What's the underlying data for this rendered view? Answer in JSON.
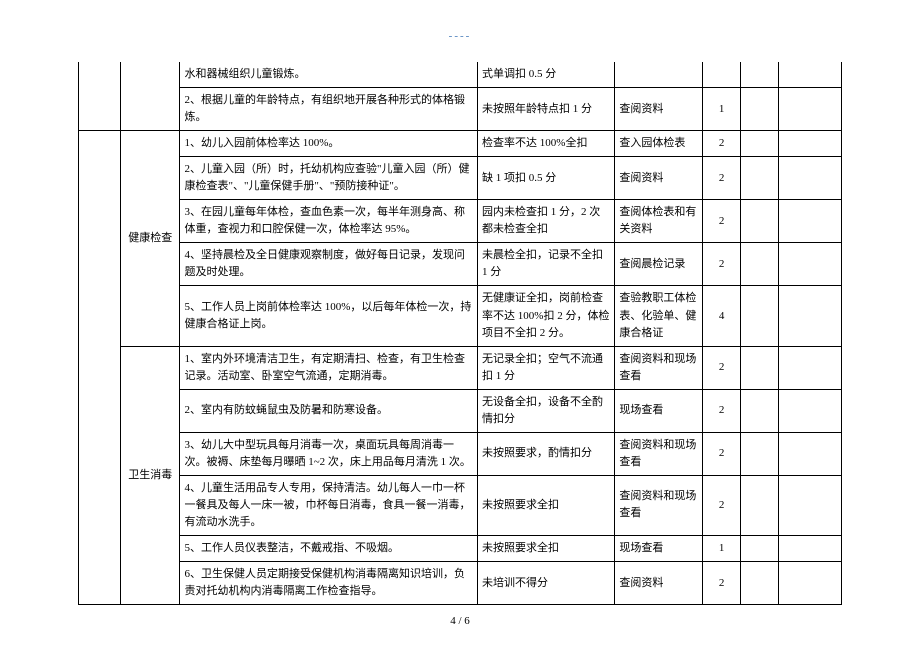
{
  "topMark": "----",
  "footer": "4 / 6",
  "categories": {
    "health": "健康检查",
    "sanit": "卫生消毒"
  },
  "rows": [
    {
      "c2": "水和器械组织儿童锻炼。",
      "c3": "式单调扣 0.5 分",
      "c4": "",
      "c5": "",
      "c6": "",
      "c7": ""
    },
    {
      "c2": "2、根据儿童的年龄特点，有组织地开展各种形式的体格锻炼。",
      "c3": "未按照年龄特点扣 1 分",
      "c4": "查阅资料",
      "c5": "1",
      "c6": "",
      "c7": ""
    },
    {
      "c2": "1、幼儿入园前体检率达 100%。",
      "c3": "检查率不达 100%全扣",
      "c4": "查入园体检表",
      "c5": "2",
      "c6": "",
      "c7": ""
    },
    {
      "c2": "2、儿童入园（所）时，托幼机构应查验\"儿童入园（所）健康检查表\"、\"儿童保健手册\"、\"预防接种证\"。",
      "c3": "缺 1 项扣 0.5 分",
      "c4": "查阅资料",
      "c5": "2",
      "c6": "",
      "c7": ""
    },
    {
      "c2": "3、在园儿童每年体检，查血色素一次，每半年测身高、称体重，查视力和口腔保健一次，体检率达 95%。",
      "c3": "园内未检查扣 1 分，2 次都未检查全扣",
      "c4": "查阅体检表和有关资料",
      "c5": "2",
      "c6": "",
      "c7": ""
    },
    {
      "c2": "4、坚持晨检及全日健康观察制度，做好每日记录，发现问题及时处理。",
      "c3": "未晨检全扣，记录不全扣 1 分",
      "c4": "查阅晨检记录",
      "c5": "2",
      "c6": "",
      "c7": ""
    },
    {
      "c2": "5、工作人员上岗前体检率达 100%，以后每年体检一次，持健康合格证上岗。",
      "c3": "无健康证全扣，岗前检查率不达 100%扣 2 分，体检项目不全扣 2 分。",
      "c4": "查验教职工体检表、化验单、健康合格证",
      "c5": "4",
      "c6": "",
      "c7": ""
    },
    {
      "c2": "1、室内外环境清洁卫生，有定期清扫、检查，有卫生检查记录。活动室、卧室空气流通，定期消毒。",
      "c3": "无记录全扣；空气不流通扣 1 分",
      "c4": "查阅资料和现场查看",
      "c5": "2",
      "c6": "",
      "c7": ""
    },
    {
      "c2": "2、室内有防蚊蝇鼠虫及防暑和防寒设备。",
      "c3": "无设备全扣，设备不全酌情扣分",
      "c4": "现场查看",
      "c5": "2",
      "c6": "",
      "c7": ""
    },
    {
      "c2": "3、幼儿大中型玩具每月消毒一次，桌面玩具每周消毒一次。被褥、床垫每月曝晒 1~2 次，床上用品每月清洗 1 次。",
      "c3": "未按照要求，酌情扣分",
      "c4": "查阅资料和现场查看",
      "c5": "2",
      "c6": "",
      "c7": ""
    },
    {
      "c2": "4、儿童生活用品专人专用，保持清洁。幼儿每人一巾一杯一餐具及每人一床一被，巾杯每日消毒，食具一餐一消毒，有流动水洗手。",
      "c3": "未按照要求全扣",
      "c4": "查阅资料和现场查看",
      "c5": "2",
      "c6": "",
      "c7": ""
    },
    {
      "c2": "5、工作人员仪表整洁，不戴戒指、不吸烟。",
      "c3": "未按照要求全扣",
      "c4": "现场查看",
      "c5": "1",
      "c6": "",
      "c7": ""
    },
    {
      "c2": "6、卫生保健人员定期接受保健机构消毒隔离知识培训，负责对托幼机构内消毒隔离工作检查指导。",
      "c3": "未培训不得分",
      "c4": "查阅资料",
      "c5": "2",
      "c6": "",
      "c7": ""
    }
  ]
}
